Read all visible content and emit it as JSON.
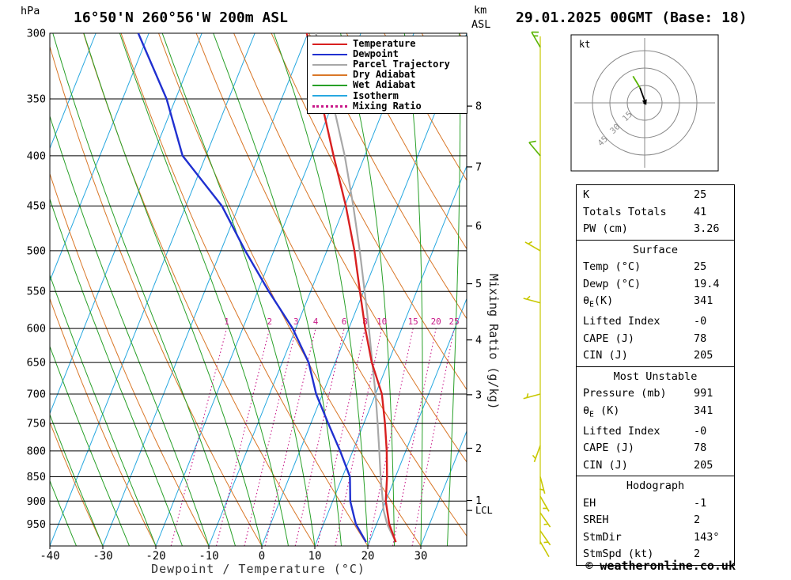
{
  "header": {
    "station_title": "16°50'N 260°56'W 200m ASL",
    "datetime_title": "29.01.2025 00GMT (Base: 18)"
  },
  "axis_labels": {
    "pressure_unit": "hPa",
    "km_unit_line1": "km",
    "km_unit_line2": "ASL",
    "xlabel": "Dewpoint / Temperature (°C)",
    "mixing_ratio_label": "Mixing Ratio (g/kg)"
  },
  "colors": {
    "temperature": "#d82020",
    "dewpoint": "#2030d0",
    "parcel": "#a8a8a8",
    "dry_adiabat": "#d97728",
    "wet_adiabat": "#28a028",
    "isotherm": "#28a8e0",
    "mixing_ratio": "#c81888",
    "barb_upper": "#58b400",
    "barb_lower": "#c8c800",
    "grid": "#000000"
  },
  "legend": [
    {
      "label": "Temperature",
      "color_key": "temperature",
      "line_style": "solid"
    },
    {
      "label": "Dewpoint",
      "color_key": "dewpoint",
      "line_style": "solid"
    },
    {
      "label": "Parcel Trajectory",
      "color_key": "parcel",
      "line_style": "solid"
    },
    {
      "label": "Dry Adiabat",
      "color_key": "dry_adiabat",
      "line_style": "solid"
    },
    {
      "label": "Wet Adiabat",
      "color_key": "wet_adiabat",
      "line_style": "solid"
    },
    {
      "label": "Isotherm",
      "color_key": "isotherm",
      "line_style": "solid"
    },
    {
      "label": "Mixing Ratio",
      "color_key": "mixing_ratio",
      "line_style": "dotted"
    }
  ],
  "chart_data": {
    "type": "skew-t-log-p-sounding",
    "pressure_axis_hpa": {
      "min": 300,
      "max": 1000,
      "ticks": [
        300,
        350,
        400,
        450,
        500,
        550,
        600,
        650,
        700,
        750,
        800,
        850,
        900,
        950
      ]
    },
    "temperature_axis_c": {
      "min": -40,
      "max": 38,
      "ticks": [
        -40,
        -30,
        -20,
        -10,
        0,
        10,
        20,
        30
      ]
    },
    "km_asl_ticks": [
      1,
      2,
      3,
      4,
      5,
      6,
      7,
      8
    ],
    "lcl_label": "LCL",
    "lcl_pressure_hpa": 920,
    "isotherms_c": {
      "from": -90,
      "to": 40,
      "step": 10
    },
    "dry_adiabats_theta_c": {
      "from": -40,
      "to": 120,
      "step": 10
    },
    "wet_adiabats_thetaw_c": {
      "from": -40,
      "to": 40,
      "step": 5
    },
    "mixing_ratio_g_kg": [
      1,
      2,
      3,
      4,
      6,
      8,
      10,
      15,
      20,
      25
    ],
    "series": {
      "temperature_c_by_hpa": [
        [
          991,
          25
        ],
        [
          950,
          22.4
        ],
        [
          900,
          20.0
        ],
        [
          850,
          18.4
        ],
        [
          800,
          16.4
        ],
        [
          750,
          14.0
        ],
        [
          700,
          11.2
        ],
        [
          650,
          6.9
        ],
        [
          600,
          3.1
        ],
        [
          550,
          -0.7
        ],
        [
          500,
          -4.8
        ],
        [
          450,
          -9.8
        ],
        [
          400,
          -15.9
        ],
        [
          350,
          -22.6
        ],
        [
          300,
          -30.2
        ]
      ],
      "dewpoint_c_by_hpa": [
        [
          991,
          19.4
        ],
        [
          950,
          16.1
        ],
        [
          900,
          13.3
        ],
        [
          850,
          11.4
        ],
        [
          800,
          7.6
        ],
        [
          750,
          3.3
        ],
        [
          700,
          -1.2
        ],
        [
          650,
          -5.0
        ],
        [
          600,
          -10.6
        ],
        [
          550,
          -17.9
        ],
        [
          500,
          -25.4
        ],
        [
          450,
          -33.2
        ],
        [
          400,
          -44.4
        ],
        [
          350,
          -51.7
        ],
        [
          300,
          -62.0
        ]
      ],
      "parcel_c_by_hpa": [
        [
          991,
          25
        ],
        [
          950,
          22.0
        ],
        [
          920,
          20.3
        ],
        [
          850,
          17.2
        ],
        [
          800,
          15.0
        ],
        [
          750,
          12.6
        ],
        [
          700,
          10.0
        ],
        [
          650,
          7.0
        ],
        [
          600,
          3.8
        ],
        [
          550,
          0.2
        ],
        [
          500,
          -3.8
        ],
        [
          450,
          -8.4
        ],
        [
          400,
          -13.8
        ],
        [
          350,
          -20.5
        ],
        [
          300,
          -28.5
        ]
      ]
    },
    "wind_barbs": [
      {
        "p": 310,
        "spd_kt": 15,
        "dir_deg": 330,
        "color_key": "barb_upper"
      },
      {
        "p": 400,
        "spd_kt": 10,
        "dir_deg": 320,
        "color_key": "barb_upper"
      },
      {
        "p": 500,
        "spd_kt": 5,
        "dir_deg": 300,
        "color_key": "barb_lower"
      },
      {
        "p": 565,
        "spd_kt": 5,
        "dir_deg": 285,
        "color_key": "barb_lower"
      },
      {
        "p": 700,
        "spd_kt": 5,
        "dir_deg": 255,
        "color_key": "barb_lower"
      },
      {
        "p": 790,
        "spd_kt": 5,
        "dir_deg": 200,
        "color_key": "barb_lower"
      },
      {
        "p": 850,
        "spd_kt": 5,
        "dir_deg": 165,
        "color_key": "barb_lower"
      },
      {
        "p": 890,
        "spd_kt": 5,
        "dir_deg": 150,
        "color_key": "barb_lower"
      },
      {
        "p": 925,
        "spd_kt": 5,
        "dir_deg": 145,
        "color_key": "barb_lower"
      },
      {
        "p": 965,
        "spd_kt": 3,
        "dir_deg": 145,
        "color_key": "barb_lower"
      },
      {
        "p": 990,
        "spd_kt": 2,
        "dir_deg": 150,
        "color_key": "barb_lower"
      }
    ]
  },
  "hodograph": {
    "unit_label": "kt",
    "ring_labels": [
      "15",
      "30",
      "45"
    ],
    "ring_radii_kt": [
      15,
      30,
      45
    ],
    "trace_segments": [
      {
        "color_key": "barb_upper",
        "points_kt": [
          [
            -10,
            23
          ],
          [
            -4,
            13
          ]
        ]
      },
      {
        "color_key": "grid",
        "points_kt": [
          [
            -4,
            13
          ],
          [
            0.5,
            0.5
          ]
        ],
        "arrow": true
      }
    ]
  },
  "table": {
    "sections": [
      {
        "rows": [
          {
            "label": "K",
            "value": "25"
          },
          {
            "label": "Totals Totals",
            "value": "41"
          },
          {
            "label": "PW (cm)",
            "value": "3.26"
          }
        ]
      },
      {
        "title": "Surface",
        "rows": [
          {
            "label": "Temp (°C)",
            "value": "25"
          },
          {
            "label": "Dewp (°C)",
            "value": "19.4"
          },
          {
            "label": "θ",
            "sub": "E",
            "label2": "(K)",
            "value": "341"
          },
          {
            "label": "Lifted Index",
            "value": "-0"
          },
          {
            "label": "CAPE (J)",
            "value": "78"
          },
          {
            "label": "CIN (J)",
            "value": "205"
          }
        ]
      },
      {
        "title": "Most Unstable",
        "rows": [
          {
            "label": "Pressure (mb)",
            "value": "991"
          },
          {
            "label": "θ",
            "sub": "E",
            "label2": " (K)",
            "value": "341"
          },
          {
            "label": "Lifted Index",
            "value": "-0"
          },
          {
            "label": "CAPE (J)",
            "value": "78"
          },
          {
            "label": "CIN (J)",
            "value": "205"
          }
        ]
      },
      {
        "title": "Hodograph",
        "rows": [
          {
            "label": "EH",
            "value": "-1"
          },
          {
            "label": "SREH",
            "value": "2"
          },
          {
            "label": "StmDir",
            "value": "143°"
          },
          {
            "label": "StmSpd (kt)",
            "value": "2"
          }
        ]
      }
    ]
  },
  "footer": {
    "copyright": "© weatheronline.co.uk"
  }
}
